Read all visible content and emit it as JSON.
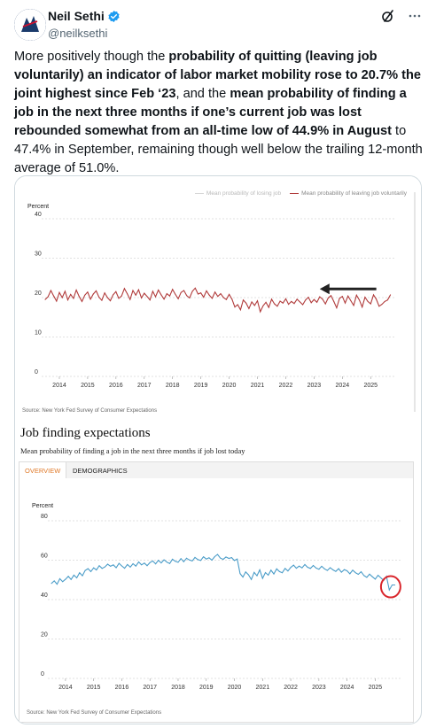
{
  "tweet": {
    "author_name": "Neil Sethi",
    "author_handle": "@neilksethi",
    "text_parts": [
      {
        "t": "More positively though the ",
        "b": false
      },
      {
        "t": "probability of quitting (leaving job voluntarily) an indicator of labor market mobility rose to 20.7% the joint highest since Feb ‘23",
        "b": true
      },
      {
        "t": ", and the ",
        "b": false
      },
      {
        "t": "mean probability of finding a job in the next three months if one’s current job was lost rebounded somewhat from an all-time low of 44.9% in August",
        "b": true
      },
      {
        "t": " to 47.4% in September, remaining though well below the trailing 12-month average of 51.0%.",
        "b": false
      }
    ]
  },
  "icons": {
    "verified": "verified-badge-icon",
    "grok": "grok-icon",
    "more": "more-options-icon",
    "avatar": "avatar-logo"
  },
  "colors": {
    "verified_blue": "#1d9bf0",
    "quit_series": "#b03a3a",
    "finding_series": "#4a9cc8",
    "arrow": "#222222",
    "circle": "#d9262c",
    "tab_active": "#e07a2a"
  },
  "chart_data": [
    {
      "type": "line",
      "legend": [
        "Mean probability of losing job",
        "Mean probability of leaving job voluntarily"
      ],
      "ylabel": "Percent",
      "yticks": [
        "0",
        "10",
        "20",
        "30",
        "40"
      ],
      "ylim": [
        0,
        40
      ],
      "xticks": [
        "2014",
        "2015",
        "2016",
        "2017",
        "2018",
        "2019",
        "2020",
        "2021",
        "2022",
        "2023",
        "2024",
        "2025"
      ],
      "xlim": [
        2013.5,
        2025.9
      ],
      "series": [
        {
          "name": "Mean probability of leaving job voluntarily",
          "x": [
            2013.5,
            2013.6,
            2013.7,
            2013.8,
            2013.9,
            2014.0,
            2014.1,
            2014.2,
            2014.3,
            2014.4,
            2014.5,
            2014.6,
            2014.7,
            2014.8,
            2014.9,
            2015.0,
            2015.1,
            2015.2,
            2015.3,
            2015.4,
            2015.5,
            2015.6,
            2015.7,
            2015.8,
            2015.9,
            2016.0,
            2016.1,
            2016.2,
            2016.3,
            2016.4,
            2016.5,
            2016.6,
            2016.7,
            2016.8,
            2016.9,
            2017.0,
            2017.1,
            2017.2,
            2017.3,
            2017.4,
            2017.5,
            2017.6,
            2017.7,
            2017.8,
            2017.9,
            2018.0,
            2018.1,
            2018.2,
            2018.3,
            2018.4,
            2018.5,
            2018.6,
            2018.7,
            2018.8,
            2018.9,
            2019.0,
            2019.1,
            2019.2,
            2019.3,
            2019.4,
            2019.5,
            2019.6,
            2019.7,
            2019.8,
            2019.9,
            2020.0,
            2020.1,
            2020.2,
            2020.3,
            2020.4,
            2020.5,
            2020.6,
            2020.7,
            2020.8,
            2020.9,
            2021.0,
            2021.1,
            2021.2,
            2021.3,
            2021.4,
            2021.5,
            2021.6,
            2021.7,
            2021.8,
            2021.9,
            2022.0,
            2022.1,
            2022.2,
            2022.3,
            2022.4,
            2022.5,
            2022.6,
            2022.7,
            2022.8,
            2022.9,
            2023.0,
            2023.1,
            2023.2,
            2023.3,
            2023.4,
            2023.5,
            2023.6,
            2023.7,
            2023.8,
            2023.9,
            2024.0,
            2024.1,
            2024.2,
            2024.3,
            2024.4,
            2024.5,
            2024.6,
            2024.7,
            2024.8,
            2024.9,
            2025.0,
            2025.1,
            2025.2,
            2025.3,
            2025.4,
            2025.5,
            2025.6,
            2025.7
          ],
          "values": [
            19.5,
            20.2,
            21.8,
            20.4,
            19.1,
            21.3,
            20.0,
            21.6,
            19.4,
            20.8,
            19.8,
            21.9,
            20.3,
            19.0,
            20.6,
            21.4,
            19.6,
            20.9,
            21.7,
            20.1,
            19.3,
            21.2,
            20.0,
            19.2,
            20.7,
            21.5,
            19.8,
            20.4,
            22.3,
            21.0,
            19.5,
            21.8,
            20.6,
            22.0,
            19.9,
            21.1,
            20.3,
            19.4,
            21.6,
            20.2,
            21.9,
            20.7,
            19.6,
            21.0,
            20.4,
            22.1,
            20.8,
            19.7,
            21.3,
            21.8,
            20.5,
            19.9,
            21.6,
            22.4,
            20.9,
            21.2,
            20.1,
            21.7,
            20.6,
            19.8,
            21.4,
            20.3,
            21.0,
            20.0,
            19.5,
            20.8,
            19.6,
            17.6,
            18.2,
            16.9,
            19.4,
            18.6,
            17.2,
            18.9,
            18.0,
            19.2,
            16.4,
            17.9,
            18.8,
            17.5,
            19.6,
            18.4,
            17.8,
            19.1,
            18.6,
            19.7,
            18.3,
            19.0,
            18.5,
            19.6,
            18.9,
            18.2,
            19.4,
            20.1,
            18.7,
            19.5,
            18.8,
            20.2,
            19.6,
            18.4,
            19.9,
            20.5,
            19.0,
            17.4,
            19.8,
            20.3,
            18.6,
            20.4,
            19.2,
            18.0,
            20.6,
            19.4,
            17.6,
            20.1,
            19.0,
            18.4,
            20.7,
            19.6,
            17.8,
            18.3,
            19.0,
            19.4,
            20.7
          ]
        },
        {
          "name": "Mean probability of losing job",
          "x": [],
          "values": []
        }
      ],
      "source": "Source: New York Fed Survey of Consumer Expectations"
    },
    {
      "type": "line",
      "title": "Job finding expectations",
      "subtitle": "Mean probability of finding a job in the next three months if job lost today",
      "tabs": [
        "OVERVIEW",
        "DEMOGRAPHICS"
      ],
      "ylabel": "Percent",
      "yticks": [
        "0",
        "20",
        "40",
        "60",
        "80"
      ],
      "ylim": [
        0,
        80
      ],
      "xticks": [
        "2014",
        "2015",
        "2016",
        "2017",
        "2018",
        "2019",
        "2020",
        "2021",
        "2022",
        "2023",
        "2024",
        "2025"
      ],
      "xlim": [
        2013.5,
        2025.9
      ],
      "series": [
        {
          "name": "Mean probability of finding a job",
          "x": [
            2013.5,
            2013.6,
            2013.7,
            2013.8,
            2013.9,
            2014.0,
            2014.1,
            2014.2,
            2014.3,
            2014.4,
            2014.5,
            2014.6,
            2014.7,
            2014.8,
            2014.9,
            2015.0,
            2015.1,
            2015.2,
            2015.3,
            2015.4,
            2015.5,
            2015.6,
            2015.7,
            2015.8,
            2015.9,
            2016.0,
            2016.1,
            2016.2,
            2016.3,
            2016.4,
            2016.5,
            2016.6,
            2016.7,
            2016.8,
            2016.9,
            2017.0,
            2017.1,
            2017.2,
            2017.3,
            2017.4,
            2017.5,
            2017.6,
            2017.7,
            2017.8,
            2017.9,
            2018.0,
            2018.1,
            2018.2,
            2018.3,
            2018.4,
            2018.5,
            2018.6,
            2018.7,
            2018.8,
            2018.9,
            2019.0,
            2019.1,
            2019.2,
            2019.3,
            2019.4,
            2019.5,
            2019.6,
            2019.7,
            2019.8,
            2019.9,
            2020.0,
            2020.1,
            2020.2,
            2020.3,
            2020.4,
            2020.5,
            2020.6,
            2020.7,
            2020.8,
            2020.9,
            2021.0,
            2021.1,
            2021.2,
            2021.3,
            2021.4,
            2021.5,
            2021.6,
            2021.7,
            2021.8,
            2021.9,
            2022.0,
            2022.1,
            2022.2,
            2022.3,
            2022.4,
            2022.5,
            2022.6,
            2022.7,
            2022.8,
            2022.9,
            2023.0,
            2023.1,
            2023.2,
            2023.3,
            2023.4,
            2023.5,
            2023.6,
            2023.7,
            2023.8,
            2023.9,
            2024.0,
            2024.1,
            2024.2,
            2024.3,
            2024.4,
            2024.5,
            2024.6,
            2024.7,
            2024.8,
            2024.9,
            2025.0,
            2025.1,
            2025.2,
            2025.3,
            2025.4,
            2025.5,
            2025.6,
            2025.7
          ],
          "values": [
            48.2,
            49.5,
            47.8,
            50.6,
            49.1,
            50.3,
            51.8,
            50.2,
            52.4,
            51.0,
            53.6,
            52.1,
            54.8,
            55.7,
            54.2,
            56.1,
            55.0,
            57.2,
            55.8,
            56.6,
            58.0,
            56.9,
            57.6,
            56.2,
            58.4,
            57.1,
            55.9,
            57.8,
            56.5,
            58.2,
            57.0,
            59.1,
            57.6,
            58.5,
            57.2,
            58.8,
            59.6,
            58.1,
            59.9,
            58.6,
            60.2,
            59.0,
            58.3,
            60.5,
            59.4,
            58.9,
            60.8,
            59.2,
            61.0,
            60.1,
            59.6,
            61.4,
            60.3,
            59.8,
            61.7,
            60.6,
            61.2,
            60.0,
            61.8,
            62.9,
            61.1,
            60.4,
            61.6,
            60.9,
            61.3,
            59.8,
            60.6,
            53.2,
            51.4,
            54.0,
            52.6,
            50.2,
            53.8,
            52.1,
            55.1,
            50.8,
            53.7,
            52.4,
            54.9,
            53.0,
            55.6,
            54.2,
            53.6,
            55.8,
            54.5,
            56.3,
            57.5,
            55.9,
            57.0,
            56.1,
            57.8,
            56.4,
            55.8,
            57.3,
            56.0,
            55.4,
            56.9,
            55.6,
            54.8,
            56.2,
            55.1,
            54.3,
            55.7,
            53.9,
            55.2,
            54.6,
            53.1,
            54.9,
            53.6,
            52.8,
            54.1,
            52.2,
            51.3,
            52.9,
            51.6,
            50.4,
            52.3,
            51.0,
            49.7,
            51.8,
            44.9,
            47.4,
            47.4
          ]
        }
      ],
      "source": "Source: New York Fed Survey of Consumer Expectations"
    }
  ]
}
